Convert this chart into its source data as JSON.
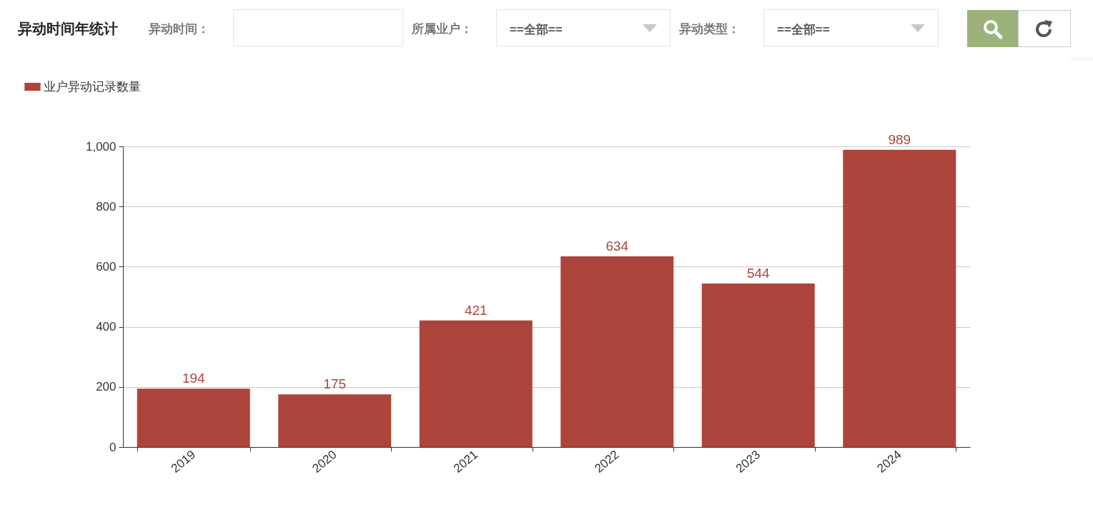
{
  "chart_data": {
    "type": "bar",
    "title": "异动时间年统计",
    "annotations": [
      "异动时间：",
      "所属业户：",
      "==全部==",
      "异动类型：",
      "==全部=="
    ],
    "categories": [
      "2019",
      "2020",
      "2021",
      "2022",
      "2023",
      "2024"
    ],
    "series": [
      {
        "name": "业户异动记录数量",
        "color": "#ad443b",
        "values": [
          194,
          175,
          421,
          634,
          544,
          989
        ]
      }
    ],
    "ylim": [
      0,
      1000
    ],
    "yticks": [
      0,
      200,
      400,
      600,
      800,
      {
        "value": 1000,
        "label": "1,000"
      }
    ],
    "grid": "y",
    "legend": "top left",
    "data_labels": true
  }
}
